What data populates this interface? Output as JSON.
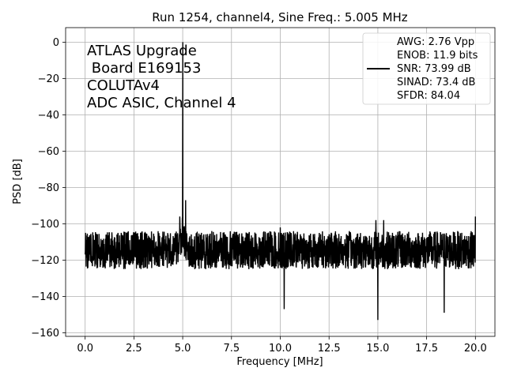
{
  "chart_data": {
    "type": "line",
    "title": "Run 1254, channel4, Sine Freq.: 5.005 MHz",
    "xlabel": "Frequency [MHz]",
    "ylabel": "PSD [dB]",
    "xlim": [
      -1.0,
      21.0
    ],
    "ylim": [
      -162,
      8
    ],
    "xticks": [
      0.0,
      2.5,
      5.0,
      7.5,
      10.0,
      12.5,
      15.0,
      17.5,
      20.0
    ],
    "xtick_labels": [
      "0.0",
      "2.5",
      "5.0",
      "7.5",
      "10.0",
      "12.5",
      "15.0",
      "17.5",
      "20.0"
    ],
    "yticks": [
      0,
      -20,
      -40,
      -60,
      -80,
      -100,
      -120,
      -140,
      -160
    ],
    "ytick_labels": [
      "0",
      "−20",
      "−40",
      "−60",
      "−80",
      "−100",
      "−120",
      "−140",
      "−160"
    ],
    "grid": true,
    "line_color": "#000000",
    "annotation_lines": [
      "ATLAS Upgrade",
      " Board E169153",
      "COLUTAv4",
      "ADC ASIC, Channel 4"
    ],
    "legend": {
      "placement": "upper right",
      "entries": [
        "AWG: 2.76 Vpp",
        "ENOB: 11.9 bits",
        "SNR: 73.99 dB",
        "SINAD: 73.4 dB",
        "SFDR: 84.04"
      ]
    },
    "series": [
      {
        "noise_floor_db": -114,
        "noise_band_db": [
          -125,
          -104
        ],
        "signal_peak": {
          "x": 5.005,
          "y": 0
        },
        "spurs": [
          {
            "x": 4.85,
            "y": -96
          },
          {
            "x": 5.15,
            "y": -87
          },
          {
            "x": 10.0,
            "y": -102
          },
          {
            "x": 10.2,
            "y": -147
          },
          {
            "x": 14.9,
            "y": -98
          },
          {
            "x": 15.0,
            "y": -153
          },
          {
            "x": 15.3,
            "y": -98
          },
          {
            "x": 18.4,
            "y": -149
          },
          {
            "x": 20.0,
            "y": -96
          }
        ]
      }
    ]
  }
}
